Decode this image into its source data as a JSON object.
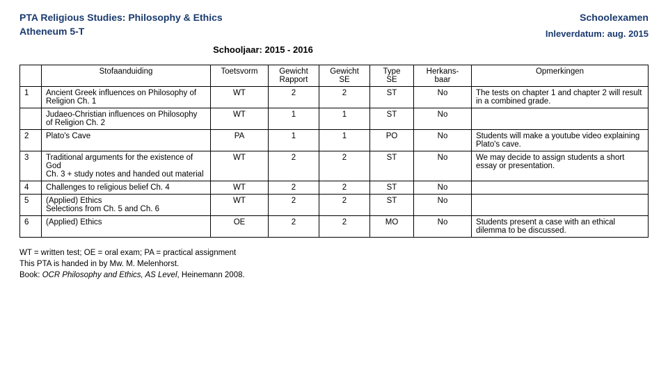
{
  "header": {
    "title_left_line1": "PTA Religious Studies: Philosophy & Ethics",
    "title_left_line2": "Atheneum 5-T",
    "title_right": "Schoolexamen",
    "inlever_label": "Inleverdatum:",
    "inlever_value": "aug. 2015",
    "schooljaar_label": "Schooljaar:",
    "schooljaar_value": "2015 - 2016"
  },
  "columns": {
    "num": "",
    "stof": "Stofaanduiding",
    "toetsvorm": "Toetsvorm",
    "gewicht_rapport_l1": "Gewicht",
    "gewicht_rapport_l2": "Rapport",
    "gewicht_se_l1": "Gewicht",
    "gewicht_se_l2": "SE",
    "type_se_l1": "Type",
    "type_se_l2": "SE",
    "herkans_l1": "Herkans-",
    "herkans_l2": "baar",
    "opmerkingen": "Opmerkingen"
  },
  "rows": [
    {
      "num": "1",
      "stof": "Ancient Greek influences on Philosophy of Religion Ch. 1",
      "tv": "WT",
      "gr": "2",
      "gse": "2",
      "type": "ST",
      "herk": "No",
      "opm": "The tests on chapter 1 and chapter 2 will result in a combined grade."
    },
    {
      "num": "",
      "stof": "Judaeo-Christian influences on Philosophy of Religion Ch. 2",
      "tv": "WT",
      "gr": "1",
      "gse": "1",
      "type": "ST",
      "herk": "No",
      "opm": ""
    },
    {
      "num": "2",
      "stof": "Plato's Cave",
      "tv": "PA",
      "gr": "1",
      "gse": "1",
      "type": "PO",
      "herk": "No",
      "opm": "Students will make a youtube video explaining Plato's cave."
    },
    {
      "num": "3",
      "stof": "Traditional arguments for the existence of God\nCh. 3 + study notes and handed out material",
      "tv": "WT",
      "gr": "2",
      "gse": "2",
      "type": "ST",
      "herk": "No",
      "opm": "We may decide to assign students a short essay or presentation."
    },
    {
      "num": "4",
      "stof": "Challenges to religious belief Ch. 4",
      "tv": "WT",
      "gr": "2",
      "gse": "2",
      "type": "ST",
      "herk": "No",
      "opm": ""
    },
    {
      "num": "5",
      "stof": "(Applied) Ethics\nSelections from Ch. 5 and Ch. 6",
      "tv": "WT",
      "gr": "2",
      "gse": "2",
      "type": "ST",
      "herk": "No",
      "opm": ""
    },
    {
      "num": "6",
      "stof": "(Applied) Ethics",
      "tv": "OE",
      "gr": "2",
      "gse": "2",
      "type": "MO",
      "herk": "No",
      "opm": "Students present a case with an ethical dilemma to be discussed."
    }
  ],
  "footnote": {
    "line1": "WT = written test; OE = oral exam; PA = practical assignment",
    "line2": "This PTA is handed in by Mw. M. Melenhorst.",
    "line3_prefix": "Book: ",
    "line3_book": "OCR Philosophy and Ethics, AS Level",
    "line3_suffix": ", Heinemann 2008."
  }
}
